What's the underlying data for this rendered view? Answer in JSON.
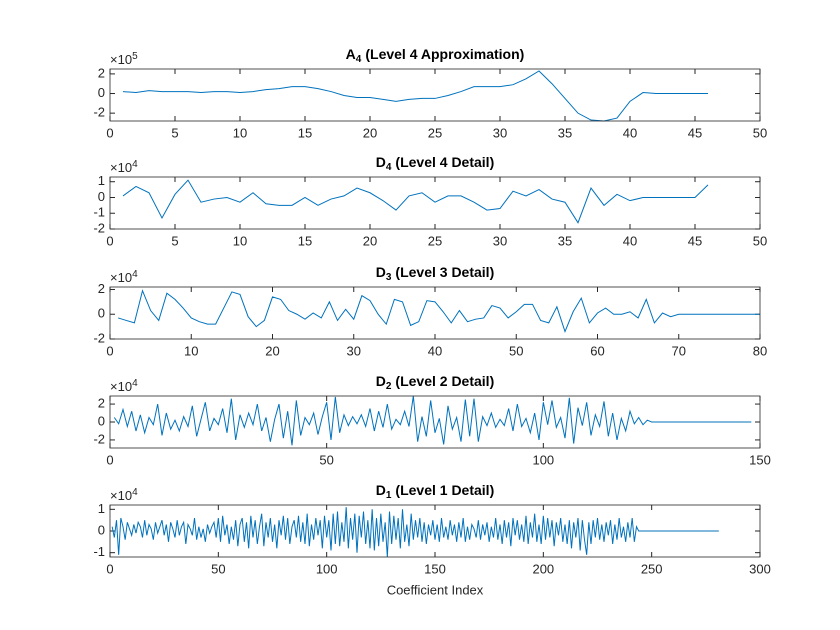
{
  "chart_data": [
    {
      "type": "line",
      "title": {
        "letter": "A",
        "sub": "4",
        "text": "(Level 4 Approximation)"
      },
      "exponent": {
        "base": "×10",
        "power": "5"
      },
      "xlim": [
        0,
        50
      ],
      "xticks": [
        0,
        5,
        10,
        15,
        20,
        25,
        30,
        35,
        40,
        45,
        50
      ],
      "ylim": [
        -2.8,
        2.5
      ],
      "yticks": [
        -2,
        0,
        2
      ],
      "color": "#0072bd",
      "x": [
        1,
        2,
        3,
        4,
        5,
        6,
        7,
        8,
        9,
        10,
        11,
        12,
        13,
        14,
        15,
        16,
        17,
        18,
        19,
        20,
        21,
        22,
        23,
        24,
        25,
        26,
        27,
        28,
        29,
        30,
        31,
        32,
        33,
        34,
        35,
        36,
        37,
        38,
        39,
        40,
        41,
        42,
        43,
        44,
        45,
        46
      ],
      "values": [
        0.2,
        0.1,
        0.3,
        0.2,
        0.2,
        0.2,
        0.1,
        0.2,
        0.2,
        0.1,
        0.2,
        0.4,
        0.5,
        0.7,
        0.7,
        0.5,
        0.2,
        -0.2,
        -0.4,
        -0.4,
        -0.6,
        -0.8,
        -0.6,
        -0.5,
        -0.5,
        -0.2,
        0.2,
        0.7,
        0.7,
        0.7,
        0.9,
        1.5,
        2.3,
        1.0,
        -0.5,
        -2.0,
        -2.7,
        -2.8,
        -2.5,
        -0.8,
        0.1,
        0.0,
        0.0,
        0.0,
        0.0,
        0.0
      ]
    },
    {
      "type": "line",
      "title": {
        "letter": "D",
        "sub": "4",
        "text": "(Level 4 Detail)"
      },
      "exponent": {
        "base": "×10",
        "power": "4"
      },
      "xlim": [
        0,
        50
      ],
      "xticks": [
        0,
        5,
        10,
        15,
        20,
        25,
        30,
        35,
        40,
        45,
        50
      ],
      "ylim": [
        -2,
        1.3
      ],
      "yticks": [
        -2,
        -1,
        0,
        1
      ],
      "color": "#0072bd",
      "x": [
        1,
        2,
        3,
        4,
        5,
        6,
        7,
        8,
        9,
        10,
        11,
        12,
        13,
        14,
        15,
        16,
        17,
        18,
        19,
        20,
        21,
        22,
        23,
        24,
        25,
        26,
        27,
        28,
        29,
        30,
        31,
        32,
        33,
        34,
        35,
        36,
        37,
        38,
        39,
        40,
        41,
        42,
        43,
        44,
        45,
        46
      ],
      "values": [
        0.1,
        0.7,
        0.3,
        -1.3,
        0.2,
        1.1,
        -0.3,
        -0.1,
        0.0,
        -0.3,
        0.3,
        -0.4,
        -0.5,
        -0.5,
        0.0,
        -0.5,
        -0.1,
        0.1,
        0.6,
        0.3,
        -0.2,
        -0.8,
        0.1,
        0.3,
        -0.3,
        0.1,
        0.1,
        -0.3,
        -0.8,
        -0.7,
        0.4,
        0.1,
        0.5,
        -0.1,
        -0.3,
        -1.6,
        0.6,
        -0.5,
        0.2,
        -0.2,
        0.0,
        0.0,
        0.0,
        0.0,
        0.0,
        0.8
      ]
    },
    {
      "type": "line",
      "title": {
        "letter": "D",
        "sub": "3",
        "text": "(Level 3 Detail)"
      },
      "exponent": {
        "base": "×10",
        "power": "4"
      },
      "xlim": [
        0,
        80
      ],
      "xticks": [
        0,
        10,
        20,
        30,
        40,
        50,
        60,
        70,
        80
      ],
      "ylim": [
        -2,
        2.2
      ],
      "yticks": [
        -2,
        0,
        2
      ],
      "color": "#0072bd",
      "x": [
        1,
        2,
        3,
        4,
        5,
        6,
        7,
        8,
        9,
        10,
        11,
        12,
        13,
        14,
        15,
        16,
        17,
        18,
        19,
        20,
        21,
        22,
        23,
        24,
        25,
        26,
        27,
        28,
        29,
        30,
        31,
        32,
        33,
        34,
        35,
        36,
        37,
        38,
        39,
        40,
        41,
        42,
        43,
        44,
        45,
        46,
        47,
        48,
        49,
        50,
        51,
        52,
        53,
        54,
        55,
        56,
        57,
        58,
        59,
        60,
        61,
        62,
        63,
        64,
        65,
        66,
        67,
        68,
        69,
        70,
        71,
        72,
        73,
        74,
        75,
        76,
        77,
        78,
        79,
        80
      ],
      "values": [
        -0.3,
        -0.5,
        -0.7,
        1.9,
        0.3,
        -0.5,
        1.7,
        1.2,
        0.5,
        -0.3,
        -0.6,
        -0.8,
        -0.8,
        0.5,
        1.8,
        1.6,
        -0.2,
        -1.0,
        -0.5,
        1.4,
        1.2,
        0.3,
        0.0,
        -0.4,
        0.1,
        -0.3,
        1.0,
        -0.5,
        0.4,
        -0.4,
        1.5,
        1.1,
        0.0,
        -0.8,
        1.2,
        1.0,
        -0.9,
        -0.6,
        1.1,
        1.0,
        0.2,
        -0.7,
        0.3,
        -0.6,
        -0.4,
        -0.3,
        0.7,
        0.5,
        -0.3,
        0.2,
        0.8,
        0.8,
        -0.5,
        -0.7,
        0.6,
        -1.4,
        0.2,
        1.3,
        -0.7,
        0.1,
        0.5,
        0.0,
        0.0,
        0.2,
        -0.3,
        1.2,
        -0.7,
        0.1,
        -0.2,
        0.0,
        0.0,
        0.0,
        0.0,
        0.0,
        0.0,
        0.0,
        0.0,
        0.0,
        0.0,
        0.0
      ]
    },
    {
      "type": "line",
      "title": {
        "letter": "D",
        "sub": "2",
        "text": "(Level 2 Detail)"
      },
      "exponent": {
        "base": "×10",
        "power": "4"
      },
      "xlim": [
        0,
        150
      ],
      "xticks": [
        0,
        50,
        100,
        150
      ],
      "ylim": [
        -2.9,
        2.9
      ],
      "yticks": [
        -2,
        0,
        2
      ],
      "color": "#0072bd",
      "x": [
        1,
        2,
        3,
        4,
        5,
        6,
        7,
        8,
        9,
        10,
        11,
        12,
        13,
        14,
        15,
        16,
        17,
        18,
        19,
        20,
        21,
        22,
        23,
        24,
        25,
        26,
        27,
        28,
        29,
        30,
        31,
        32,
        33,
        34,
        35,
        36,
        37,
        38,
        39,
        40,
        41,
        42,
        43,
        44,
        45,
        46,
        47,
        48,
        49,
        50,
        51,
        52,
        53,
        54,
        55,
        56,
        57,
        58,
        59,
        60,
        61,
        62,
        63,
        64,
        65,
        66,
        67,
        68,
        69,
        70,
        71,
        72,
        73,
        74,
        75,
        76,
        77,
        78,
        79,
        80,
        81,
        82,
        83,
        84,
        85,
        86,
        87,
        88,
        89,
        90,
        91,
        92,
        93,
        94,
        95,
        96,
        97,
        98,
        99,
        100,
        101,
        102,
        103,
        104,
        105,
        106,
        107,
        108,
        109,
        110,
        111,
        112,
        113,
        114,
        115,
        116,
        117,
        118,
        119,
        120,
        121,
        122,
        123,
        124,
        125,
        126,
        127,
        128,
        129,
        130,
        131,
        132,
        133,
        134,
        135,
        136,
        137,
        138,
        139,
        140,
        141,
        142,
        143,
        144,
        145,
        146,
        147,
        148
      ],
      "values": [
        0.5,
        -0.2,
        1.4,
        -0.5,
        1.2,
        -1.0,
        0.8,
        -1.2,
        0.5,
        -0.3,
        2.0,
        -1.5,
        1.0,
        -0.8,
        0.2,
        -1.0,
        0.6,
        -0.5,
        1.8,
        -1.6,
        0.3,
        2.2,
        -1.0,
        0.4,
        -0.3,
        1.5,
        -1.2,
        2.6,
        -2.0,
        0.8,
        -0.6,
        1.0,
        -0.3,
        2.0,
        -1.0,
        0.5,
        -2.2,
        0.3,
        2.0,
        -1.8,
        1.2,
        -2.6,
        2.4,
        -1.5,
        0.5,
        -0.3,
        1.0,
        -1.4,
        0.6,
        2.2,
        -2.0,
        2.8,
        -1.2,
        0.8,
        -0.4,
        0.6,
        -0.2,
        0.8,
        -0.5,
        1.5,
        -1.0,
        1.2,
        -0.6,
        2.0,
        -0.8,
        0.3,
        -0.3,
        1.2,
        -0.5,
        2.9,
        -2.2,
        0.6,
        -1.6,
        2.4,
        -1.2,
        0.4,
        -2.5,
        1.8,
        -0.8,
        0.5,
        -2.2,
        2.5,
        -1.6,
        2.6,
        -2.2,
        0.6,
        -0.4,
        1.0,
        -0.6,
        0.3,
        -0.4,
        1.5,
        -1.0,
        2.0,
        -0.5,
        0.4,
        -1.2,
        1.0,
        -2.0,
        2.2,
        -0.3,
        2.4,
        -0.6,
        0.5,
        -1.8,
        2.7,
        -2.4,
        1.6,
        -0.4,
        2.2,
        -1.5,
        0.8,
        -0.5,
        2.3,
        -1.6,
        1.0,
        -2.0,
        0.4,
        -1.0,
        1.2,
        -0.2,
        0.5,
        -0.3,
        0.2,
        0,
        0,
        0,
        0,
        0,
        0,
        0,
        0,
        0,
        0,
        0,
        0,
        0,
        0,
        0,
        0,
        0,
        0,
        0,
        0,
        0,
        0,
        0,
        0
      ]
    },
    {
      "type": "line",
      "title": {
        "letter": "D",
        "sub": "1",
        "text": "(Level 1 Detail)"
      },
      "exponent": {
        "base": "×10",
        "power": "4"
      },
      "xlabel": "Coefficient Index",
      "xlim": [
        0,
        300
      ],
      "xticks": [
        0,
        50,
        100,
        150,
        200,
        250,
        300
      ],
      "ylim": [
        -1.2,
        1.2
      ],
      "yticks": [
        -1,
        0,
        1
      ],
      "color": "#0072bd",
      "x": [
        1,
        2,
        3,
        4,
        5,
        6,
        7,
        8,
        9,
        10,
        11,
        12,
        13,
        14,
        15,
        16,
        17,
        18,
        19,
        20,
        21,
        22,
        23,
        24,
        25,
        26,
        27,
        28,
        29,
        30,
        31,
        32,
        33,
        34,
        35,
        36,
        37,
        38,
        39,
        40,
        41,
        42,
        43,
        44,
        45,
        46,
        47,
        48,
        49,
        50,
        51,
        52,
        53,
        54,
        55,
        56,
        57,
        58,
        59,
        60,
        61,
        62,
        63,
        64,
        65,
        66,
        67,
        68,
        69,
        70,
        71,
        72,
        73,
        74,
        75,
        76,
        77,
        78,
        79,
        80,
        81,
        82,
        83,
        84,
        85,
        86,
        87,
        88,
        89,
        90,
        91,
        92,
        93,
        94,
        95,
        96,
        97,
        98,
        99,
        100,
        101,
        102,
        103,
        104,
        105,
        106,
        107,
        108,
        109,
        110,
        111,
        112,
        113,
        114,
        115,
        116,
        117,
        118,
        119,
        120,
        121,
        122,
        123,
        124,
        125,
        126,
        127,
        128,
        129,
        130,
        131,
        132,
        133,
        134,
        135,
        136,
        137,
        138,
        139,
        140,
        141,
        142,
        143,
        144,
        145,
        146,
        147,
        148,
        149,
        150,
        151,
        152,
        153,
        154,
        155,
        156,
        157,
        158,
        159,
        160,
        161,
        162,
        163,
        164,
        165,
        166,
        167,
        168,
        169,
        170,
        171,
        172,
        173,
        174,
        175,
        176,
        177,
        178,
        179,
        180,
        181,
        182,
        183,
        184,
        185,
        186,
        187,
        188,
        189,
        190,
        191,
        192,
        193,
        194,
        195,
        196,
        197,
        198,
        199,
        200,
        201,
        202,
        203,
        204,
        205,
        206,
        207,
        208,
        209,
        210,
        211,
        212,
        213,
        214,
        215,
        216,
        217,
        218,
        219,
        220,
        221,
        222,
        223,
        224,
        225,
        226,
        227,
        228,
        229,
        230,
        231,
        232,
        233,
        234,
        235,
        236,
        237,
        238,
        239,
        240,
        241,
        242,
        243,
        244,
        245,
        246,
        247,
        248,
        249,
        250,
        251,
        252,
        253,
        254,
        255,
        256,
        257,
        258,
        259,
        260,
        261,
        262,
        263,
        264,
        265,
        266,
        267,
        268,
        269,
        270,
        271,
        272,
        273,
        274,
        275,
        276,
        277,
        278,
        279,
        280,
        281
      ],
      "values": [
        0.2,
        -0.3,
        0.5,
        -1.1,
        0.6,
        0.2,
        -0.4,
        0.4,
        0.1,
        -0.2,
        0.3,
        -0.1,
        0.4,
        0.2,
        -0.3,
        0.5,
        -0.2,
        0.3,
        0.1,
        -0.4,
        0.4,
        -0.1,
        0.2,
        0.5,
        -0.2,
        0.3,
        -0.5,
        0.4,
        0.1,
        -0.3,
        0.5,
        -0.2,
        0.2,
        0.4,
        -0.6,
        0.3,
        0.1,
        -0.2,
        0.6,
        -0.4,
        0.2,
        -0.3,
        0.1,
        -0.5,
        0.3,
        -0.1,
        0.2,
        0.4,
        -0.3,
        0.6,
        -0.5,
        0.7,
        -0.2,
        0.3,
        -0.6,
        0.2,
        -0.4,
        0.5,
        -0.7,
        0.3,
        0.6,
        -0.5,
        0.4,
        -0.8,
        0.7,
        -0.3,
        0.5,
        -0.6,
        0.2,
        0.8,
        -0.7,
        0.4,
        -0.3,
        0.6,
        -0.5,
        0.3,
        -0.8,
        0.5,
        -0.2,
        0.7,
        -0.4,
        0.6,
        -0.6,
        0.2,
        0.5,
        -0.3,
        0.7,
        -0.5,
        0.4,
        -0.6,
        0.8,
        -0.7,
        0.3,
        -0.4,
        0.6,
        -0.2,
        0.5,
        -0.8,
        0.7,
        -0.3,
        0.5,
        -0.9,
        0.8,
        -0.6,
        0.9,
        -0.7,
        0.4,
        -0.5,
        1.1,
        -0.8,
        0.6,
        -0.4,
        0.8,
        -1.0,
        0.7,
        -0.3,
        0.9,
        -0.6,
        0.5,
        -0.8,
        1.0,
        -0.9,
        0.6,
        -0.7,
        0.8,
        -0.5,
        0.4,
        -1.2,
        0.9,
        -0.6,
        0.7,
        -0.4,
        0.6,
        -0.8,
        1.0,
        -0.5,
        0.3,
        -0.7,
        0.8,
        -0.4,
        0.5,
        -0.3,
        0.6,
        -0.5,
        0.4,
        -0.6,
        0.3,
        -0.2,
        0.5,
        -0.4,
        0.3,
        -0.5,
        0.6,
        -0.3,
        0.2,
        -0.4,
        0.5,
        -0.2,
        0.3,
        -0.5,
        0.4,
        -0.3,
        0.6,
        -0.5,
        0.2,
        -0.4,
        0.3,
        0.1,
        -0.3,
        0.5,
        -0.4,
        0.3,
        -0.2,
        0.4,
        -0.5,
        0.2,
        -0.3,
        0.6,
        -0.4,
        0.3,
        -0.6,
        0.5,
        -0.3,
        0.4,
        -0.7,
        0.6,
        -0.2,
        0.5,
        -0.4,
        0.3,
        -0.5,
        0.7,
        -0.6,
        0.4,
        -0.3,
        0.8,
        -0.5,
        0.3,
        -0.6,
        0.7,
        -0.4,
        0.6,
        -0.3,
        0.5,
        -0.7,
        0.4,
        -0.2,
        0.6,
        -0.5,
        0.3,
        -0.6,
        0.5,
        -0.8,
        0.4,
        -0.3,
        0.6,
        -0.9,
        0.5,
        -0.4,
        -1.1,
        0.4,
        -0.6,
        0.5,
        -0.3,
        0.6,
        -0.4,
        0.3,
        -0.5,
        0.4,
        -0.2,
        0.5,
        -0.6,
        0.3,
        -0.4,
        0.6,
        -0.3,
        0.2,
        -0.5,
        0.4,
        -0.3,
        0.6,
        -0.5,
        0.2,
        0,
        0,
        0,
        0,
        0,
        0,
        0,
        0,
        0,
        0,
        0,
        0,
        0,
        0,
        0,
        0,
        0,
        0,
        0,
        0,
        0,
        0,
        0,
        0,
        0,
        0,
        0,
        0,
        0,
        0,
        0,
        0,
        0,
        0,
        0,
        0,
        0,
        0
      ]
    }
  ]
}
